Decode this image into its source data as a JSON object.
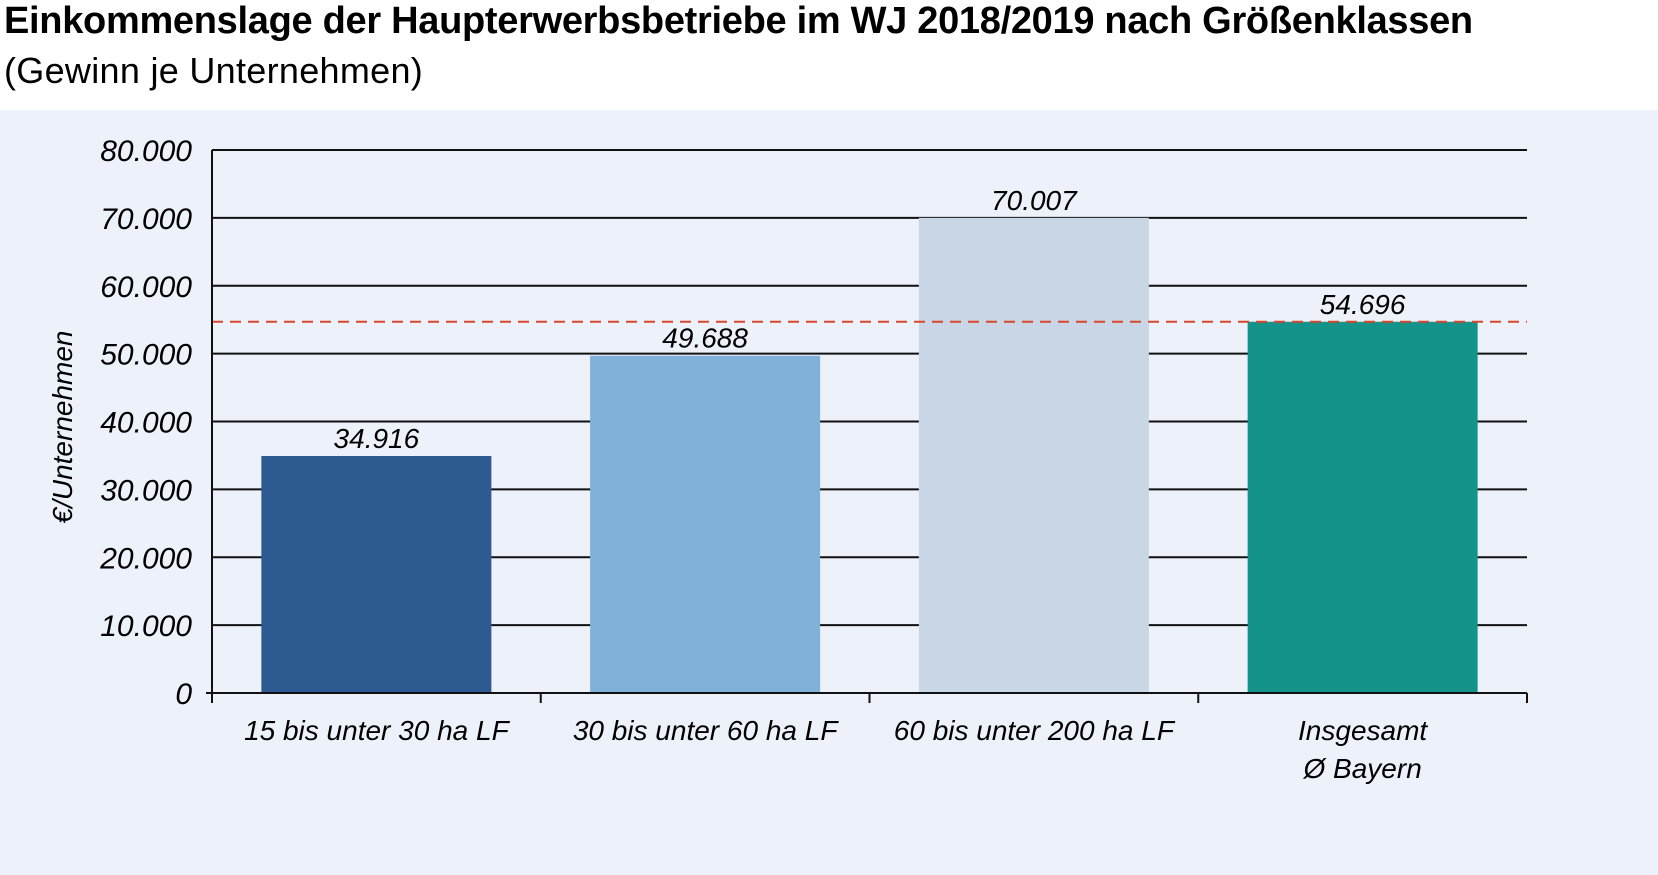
{
  "chart_data": {
    "type": "bar",
    "title": "Einkommenslage der Haupterwerbsbetriebe im WJ 2018/2019 nach Größenklassen",
    "subtitle": "(Gewinn je Unternehmen)",
    "ylabel": "€/Unternehmen",
    "xlabel": "",
    "ylim": [
      0,
      80000
    ],
    "yticks": [
      0,
      10000,
      20000,
      30000,
      40000,
      50000,
      60000,
      70000,
      80000
    ],
    "ytick_labels": [
      "0",
      "10.000",
      "20.000",
      "30.000",
      "40.000",
      "50.000",
      "60.000",
      "70.000",
      "80.000"
    ],
    "grid": true,
    "categories": [
      [
        "15 bis unter 30 ha LF"
      ],
      [
        "30 bis unter 60 ha LF"
      ],
      [
        "60 bis unter 200 ha LF"
      ],
      [
        "Insgesamt",
        "Ø Bayern"
      ]
    ],
    "values": [
      34916,
      49688,
      70007,
      54696
    ],
    "value_labels": [
      "34.916",
      "49.688",
      "70.007",
      "54.696"
    ],
    "colors": [
      "#2d5b91",
      "#80b1d9",
      "#c9d6e5",
      "#13938a"
    ],
    "reference_line": {
      "value": 54696,
      "color": "#d9462b",
      "style": "dashed"
    }
  }
}
